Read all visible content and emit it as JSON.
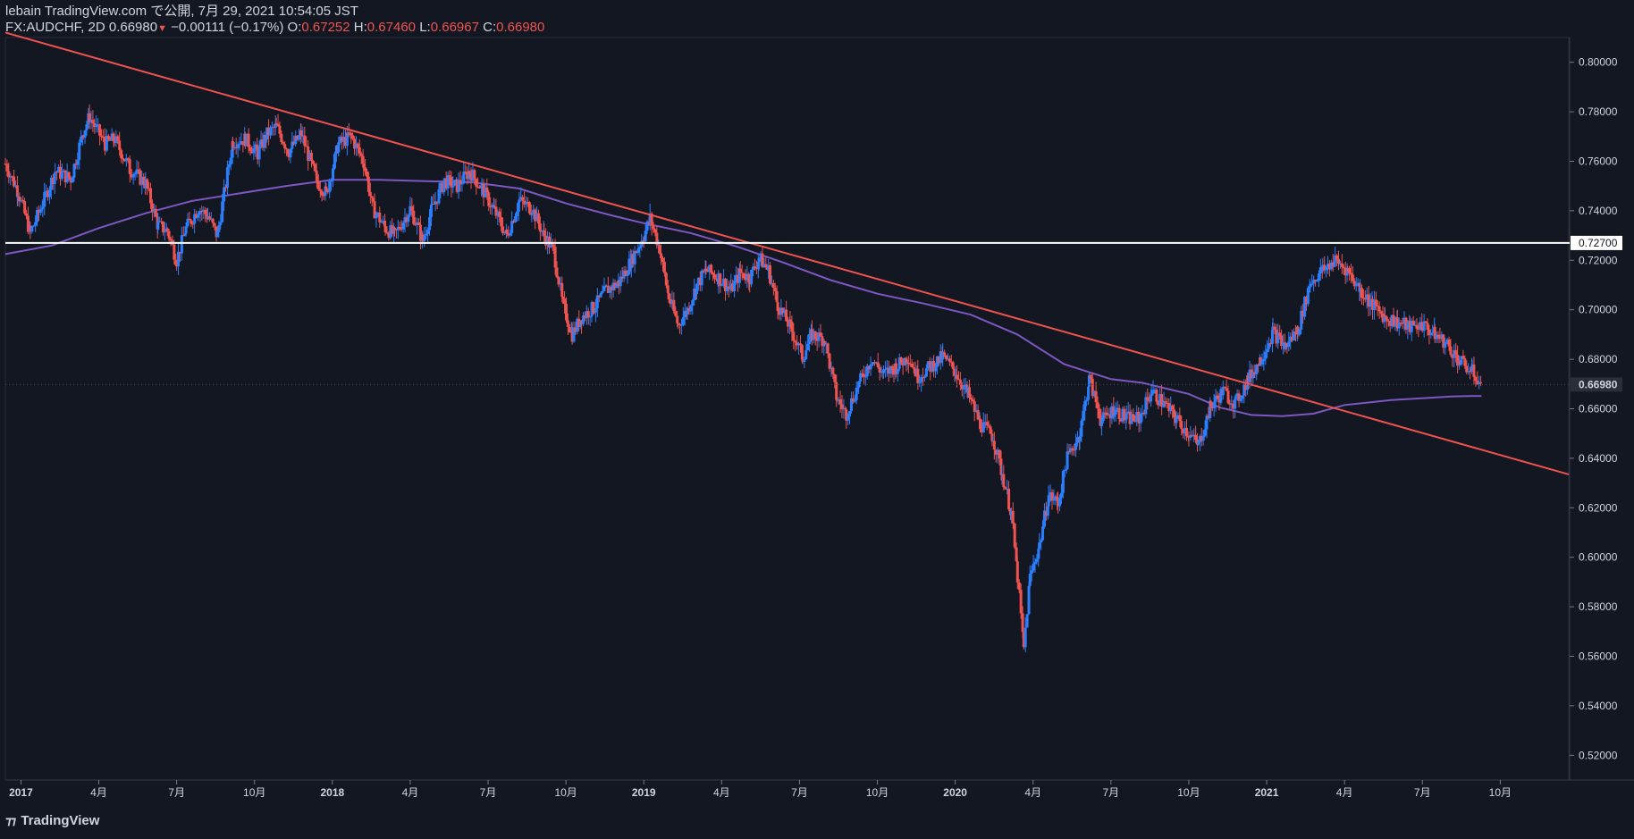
{
  "header": {
    "published": "lebain TradingView.com で公開, 7月 29, 2021 10:54:05 JST",
    "symbol": "FX:AUDCHF, 2D",
    "price": "0.66980",
    "change_arrow": "▼",
    "change": "−0.00111 (−0.17%)",
    "o_label": "O:",
    "o_value": "0.67252",
    "h_label": "H:",
    "h_value": "0.67460",
    "l_label": "L:",
    "l_value": "0.66967",
    "c_label": "C:",
    "c_value": "0.66980"
  },
  "brand": {
    "name": "TradingView",
    "icon": "tradingview-logo-icon"
  },
  "colors": {
    "background": "#131722",
    "up": "#2a7fff",
    "down": "#ef5350",
    "trendline": "#ef5350",
    "ma": "#7e57c2",
    "hline": "#ffffff",
    "text": "#d1d4dc"
  },
  "chart_data": {
    "type": "candlestick",
    "ylim": [
      0.51,
      0.81
    ],
    "y_ticks": [
      "0.52000",
      "0.54000",
      "0.56000",
      "0.58000",
      "0.60000",
      "0.62000",
      "0.64000",
      "0.66000",
      "0.68000",
      "0.70000",
      "0.72000",
      "0.74000",
      "0.76000",
      "0.78000",
      "0.80000"
    ],
    "x_ticks": [
      {
        "label": "2017",
        "t": 2017.0
      },
      {
        "label": "4月",
        "t": 2017.25
      },
      {
        "label": "7月",
        "t": 2017.5
      },
      {
        "label": "10月",
        "t": 2017.75
      },
      {
        "label": "2018",
        "t": 2018.0
      },
      {
        "label": "4月",
        "t": 2018.25
      },
      {
        "label": "7月",
        "t": 2018.5
      },
      {
        "label": "10月",
        "t": 2018.75
      },
      {
        "label": "2019",
        "t": 2019.0
      },
      {
        "label": "4月",
        "t": 2019.25
      },
      {
        "label": "7月",
        "t": 2019.5
      },
      {
        "label": "10月",
        "t": 2019.75
      },
      {
        "label": "2020",
        "t": 2020.0
      },
      {
        "label": "4月",
        "t": 2020.25
      },
      {
        "label": "7月",
        "t": 2020.5
      },
      {
        "label": "10月",
        "t": 2020.75
      },
      {
        "label": "2021",
        "t": 2021.0
      },
      {
        "label": "4月",
        "t": 2021.25
      },
      {
        "label": "7月",
        "t": 2021.5
      },
      {
        "label": "10月",
        "t": 2021.75
      }
    ],
    "xlim": [
      2016.95,
      2021.97
    ],
    "horizontal_line": {
      "value": 0.727,
      "label": "0.72700"
    },
    "last_price": {
      "value": 0.6698,
      "label": "0.66980"
    },
    "trendline": {
      "start": {
        "t": 2016.95,
        "y": 0.812
      },
      "end": {
        "t": 2021.97,
        "y": 0.6335
      }
    },
    "moving_average": [
      [
        2016.95,
        0.7225
      ],
      [
        2017.1,
        0.726
      ],
      [
        2017.25,
        0.733
      ],
      [
        2017.4,
        0.739
      ],
      [
        2017.55,
        0.744
      ],
      [
        2017.7,
        0.747
      ],
      [
        2017.85,
        0.75
      ],
      [
        2018.0,
        0.7525
      ],
      [
        2018.15,
        0.7525
      ],
      [
        2018.3,
        0.752
      ],
      [
        2018.45,
        0.7515
      ],
      [
        2018.6,
        0.749
      ],
      [
        2018.75,
        0.743
      ],
      [
        2018.9,
        0.738
      ],
      [
        2019.0,
        0.735
      ],
      [
        2019.15,
        0.731
      ],
      [
        2019.3,
        0.7255
      ],
      [
        2019.45,
        0.719
      ],
      [
        2019.6,
        0.712
      ],
      [
        2019.75,
        0.7065
      ],
      [
        2019.9,
        0.7025
      ],
      [
        2020.05,
        0.698
      ],
      [
        2020.2,
        0.69
      ],
      [
        2020.35,
        0.678
      ],
      [
        2020.5,
        0.672
      ],
      [
        2020.6,
        0.6705
      ],
      [
        2020.75,
        0.666
      ],
      [
        2020.85,
        0.6605
      ],
      [
        2020.95,
        0.6575
      ],
      [
        2021.05,
        0.657
      ],
      [
        2021.15,
        0.658
      ],
      [
        2021.25,
        0.6615
      ],
      [
        2021.4,
        0.6635
      ],
      [
        2021.6,
        0.665
      ],
      [
        2021.69,
        0.6652
      ]
    ],
    "price_path": [
      [
        2016.95,
        0.759
      ],
      [
        2016.99,
        0.748
      ],
      [
        2017.03,
        0.731
      ],
      [
        2017.07,
        0.743
      ],
      [
        2017.11,
        0.756
      ],
      [
        2017.16,
        0.753
      ],
      [
        2017.2,
        0.772
      ],
      [
        2017.22,
        0.778
      ],
      [
        2017.27,
        0.767
      ],
      [
        2017.3,
        0.769
      ],
      [
        2017.35,
        0.757
      ],
      [
        2017.4,
        0.751
      ],
      [
        2017.44,
        0.734
      ],
      [
        2017.47,
        0.732
      ],
      [
        2017.5,
        0.72
      ],
      [
        2017.53,
        0.733
      ],
      [
        2017.57,
        0.741
      ],
      [
        2017.6,
        0.738
      ],
      [
        2017.63,
        0.73
      ],
      [
        2017.68,
        0.768
      ],
      [
        2017.72,
        0.769
      ],
      [
        2017.76,
        0.763
      ],
      [
        2017.79,
        0.771
      ],
      [
        2017.82,
        0.774
      ],
      [
        2017.86,
        0.764
      ],
      [
        2017.9,
        0.771
      ],
      [
        2017.95,
        0.752
      ],
      [
        2017.98,
        0.747
      ],
      [
        2018.02,
        0.767
      ],
      [
        2018.06,
        0.77
      ],
      [
        2018.1,
        0.76
      ],
      [
        2018.13,
        0.741
      ],
      [
        2018.17,
        0.733
      ],
      [
        2018.2,
        0.73
      ],
      [
        2018.25,
        0.741
      ],
      [
        2018.29,
        0.728
      ],
      [
        2018.32,
        0.741
      ],
      [
        2018.36,
        0.752
      ],
      [
        2018.4,
        0.75
      ],
      [
        2018.44,
        0.756
      ],
      [
        2018.48,
        0.749
      ],
      [
        2018.52,
        0.74
      ],
      [
        2018.56,
        0.73
      ],
      [
        2018.6,
        0.744
      ],
      [
        2018.64,
        0.741
      ],
      [
        2018.68,
        0.73
      ],
      [
        2018.71,
        0.724
      ],
      [
        2018.74,
        0.702
      ],
      [
        2018.77,
        0.69
      ],
      [
        2018.8,
        0.697
      ],
      [
        2018.84,
        0.701
      ],
      [
        2018.88,
        0.708
      ],
      [
        2018.92,
        0.711
      ],
      [
        2018.96,
        0.72
      ],
      [
        2019.0,
        0.73
      ],
      [
        2019.02,
        0.737
      ],
      [
        2019.05,
        0.725
      ],
      [
        2019.08,
        0.705
      ],
      [
        2019.11,
        0.694
      ],
      [
        2019.14,
        0.7
      ],
      [
        2019.17,
        0.71
      ],
      [
        2019.2,
        0.716
      ],
      [
        2019.24,
        0.713
      ],
      [
        2019.28,
        0.708
      ],
      [
        2019.31,
        0.715
      ],
      [
        2019.34,
        0.713
      ],
      [
        2019.37,
        0.721
      ],
      [
        2019.4,
        0.716
      ],
      [
        2019.43,
        0.702
      ],
      [
        2019.47,
        0.693
      ],
      [
        2019.51,
        0.681
      ],
      [
        2019.54,
        0.69
      ],
      [
        2019.58,
        0.688
      ],
      [
        2019.62,
        0.664
      ],
      [
        2019.65,
        0.658
      ],
      [
        2019.69,
        0.67
      ],
      [
        2019.73,
        0.68
      ],
      [
        2019.77,
        0.674
      ],
      [
        2019.81,
        0.677
      ],
      [
        2019.85,
        0.681
      ],
      [
        2019.88,
        0.673
      ],
      [
        2019.92,
        0.677
      ],
      [
        2019.96,
        0.681
      ],
      [
        2020.0,
        0.675
      ],
      [
        2020.04,
        0.666
      ],
      [
        2020.08,
        0.654
      ],
      [
        2020.12,
        0.649
      ],
      [
        2020.15,
        0.634
      ],
      [
        2020.18,
        0.618
      ],
      [
        2020.2,
        0.592
      ],
      [
        2020.22,
        0.563
      ],
      [
        2020.24,
        0.592
      ],
      [
        2020.27,
        0.605
      ],
      [
        2020.3,
        0.625
      ],
      [
        2020.33,
        0.622
      ],
      [
        2020.36,
        0.64
      ],
      [
        2020.4,
        0.65
      ],
      [
        2020.43,
        0.672
      ],
      [
        2020.47,
        0.655
      ],
      [
        2020.51,
        0.66
      ],
      [
        2020.55,
        0.656
      ],
      [
        2020.59,
        0.656
      ],
      [
        2020.63,
        0.667
      ],
      [
        2020.67,
        0.662
      ],
      [
        2020.71,
        0.656
      ],
      [
        2020.75,
        0.65
      ],
      [
        2020.78,
        0.645
      ],
      [
        2020.82,
        0.661
      ],
      [
        2020.86,
        0.667
      ],
      [
        2020.9,
        0.662
      ],
      [
        2020.94,
        0.672
      ],
      [
        2020.98,
        0.68
      ],
      [
        2021.02,
        0.691
      ],
      [
        2021.06,
        0.685
      ],
      [
        2021.1,
        0.692
      ],
      [
        2021.14,
        0.711
      ],
      [
        2021.18,
        0.716
      ],
      [
        2021.22,
        0.72
      ],
      [
        2021.26,
        0.716
      ],
      [
        2021.3,
        0.708
      ],
      [
        2021.34,
        0.702
      ],
      [
        2021.38,
        0.697
      ],
      [
        2021.42,
        0.695
      ],
      [
        2021.46,
        0.693
      ],
      [
        2021.5,
        0.694
      ],
      [
        2021.54,
        0.69
      ],
      [
        2021.58,
        0.686
      ],
      [
        2021.62,
        0.679
      ],
      [
        2021.66,
        0.675
      ],
      [
        2021.69,
        0.6698
      ]
    ]
  }
}
